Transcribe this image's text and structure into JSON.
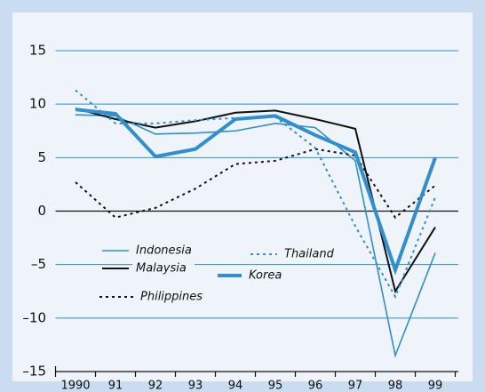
{
  "chart_data": {
    "type": "line",
    "categories": [
      "1990",
      "91",
      "92",
      "93",
      "94",
      "95",
      "96",
      "97",
      "98",
      "99"
    ],
    "series": [
      {
        "name": "Indonesia",
        "color": "#2f8fcf",
        "style": "solid",
        "weight": "thin",
        "values": [
          9.0,
          8.9,
          7.2,
          7.3,
          7.5,
          8.2,
          7.8,
          4.7,
          -13.5,
          -3.9
        ]
      },
      {
        "name": "Malaysia",
        "color": "#111111",
        "style": "solid",
        "weight": "medium",
        "values": [
          9.6,
          8.6,
          7.8,
          8.4,
          9.2,
          9.4,
          8.6,
          7.7,
          -7.5,
          -1.5
        ]
      },
      {
        "name": "Philippines",
        "color": "#111111",
        "style": "dotted",
        "weight": "medium",
        "values": [
          2.7,
          -0.6,
          0.3,
          2.1,
          4.4,
          4.7,
          5.8,
          5.2,
          -0.6,
          2.4
        ]
      },
      {
        "name": "Thailand",
        "color": "#2f8fcf",
        "style": "dotted",
        "weight": "medium",
        "values": [
          11.3,
          8.2,
          8.2,
          8.5,
          8.7,
          8.8,
          5.9,
          -1.4,
          -8.0,
          1.3
        ]
      },
      {
        "name": "Korea",
        "color": "#2f8fcf",
        "style": "solid",
        "weight": "thick",
        "values": [
          9.5,
          9.1,
          5.1,
          5.8,
          8.6,
          8.9,
          7.1,
          5.5,
          -5.5,
          5.0
        ]
      }
    ],
    "ylim": [
      -15,
      15
    ],
    "yticks": [
      {
        "value": -15,
        "label": "–15"
      },
      {
        "value": -10,
        "label": "–10"
      },
      {
        "value": -5,
        "label": "–5"
      },
      0,
      5,
      10,
      15
    ],
    "grid": true
  }
}
